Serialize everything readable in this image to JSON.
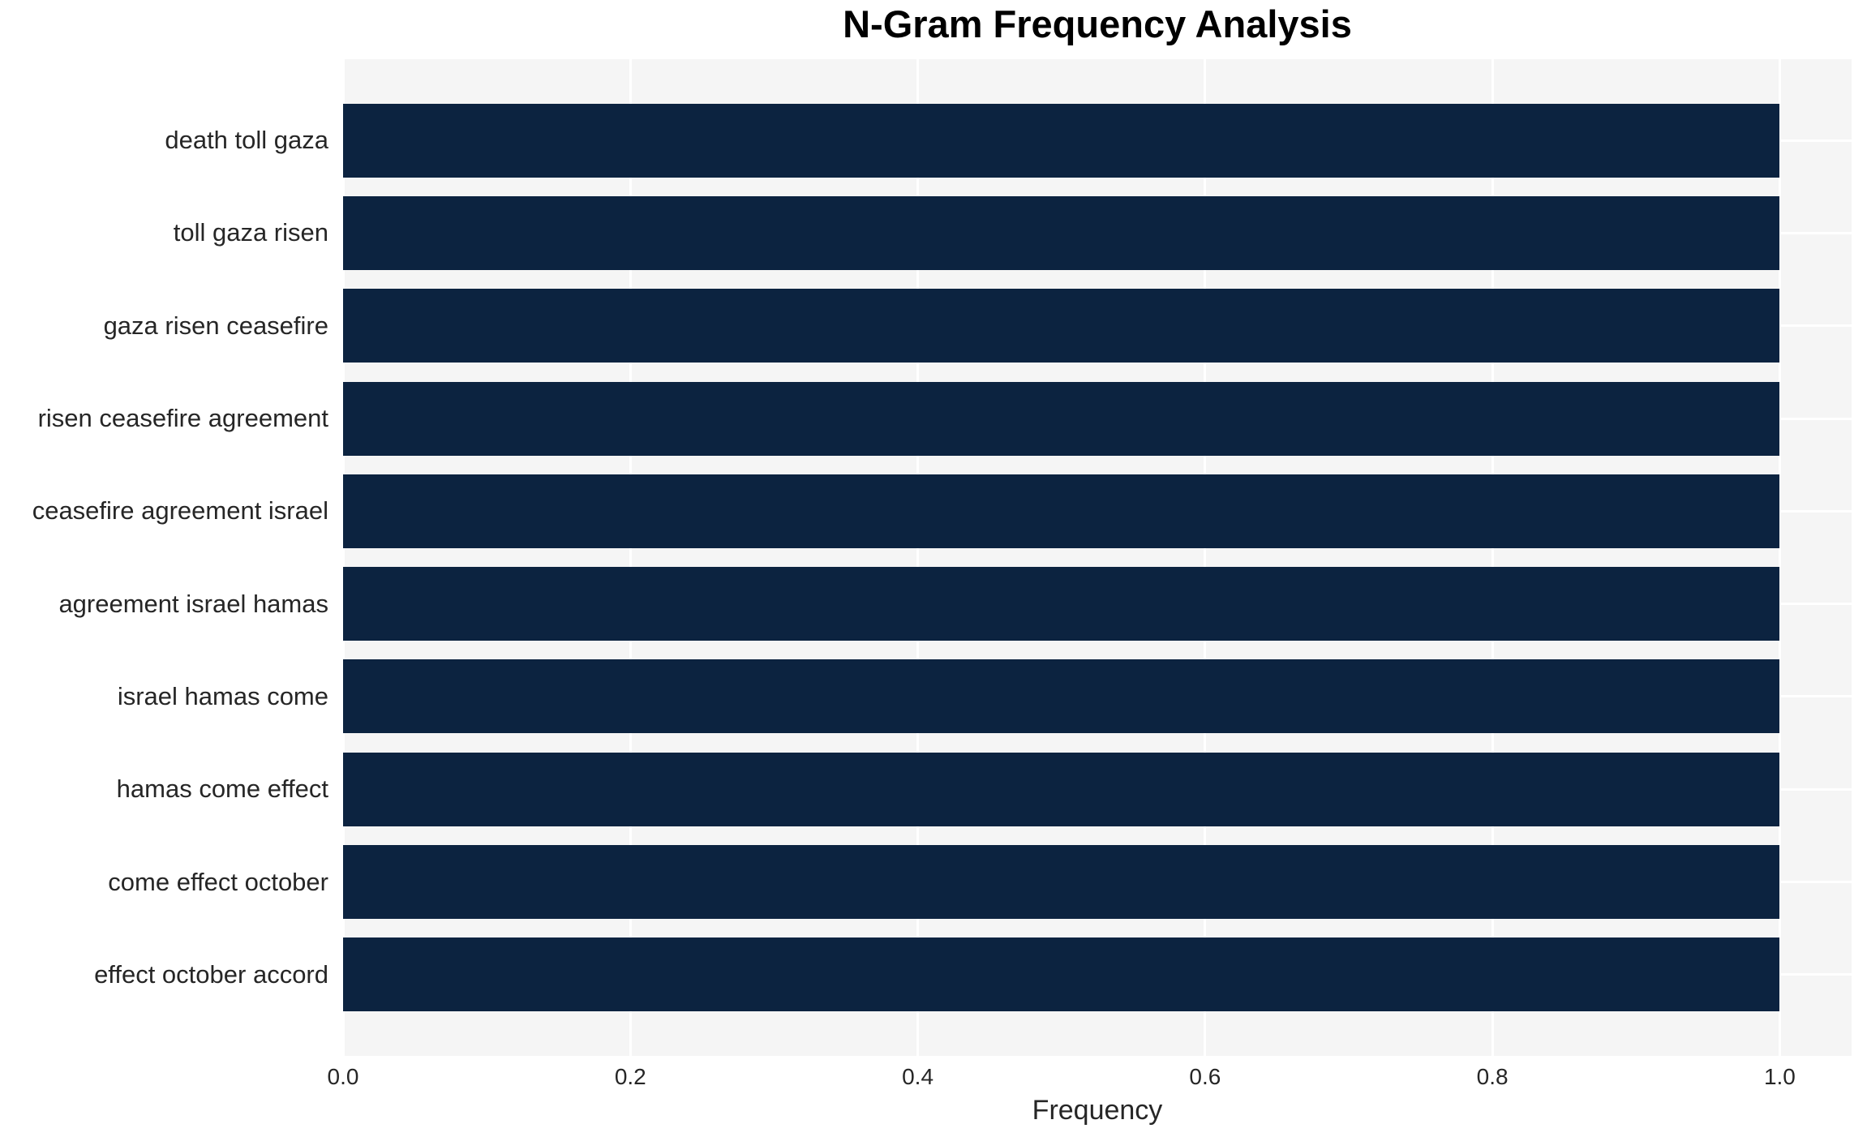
{
  "chart_data": {
    "type": "bar",
    "orientation": "horizontal",
    "title": "N-Gram Frequency Analysis",
    "xlabel": "Frequency",
    "ylabel": "",
    "categories": [
      "death toll gaza",
      "toll gaza risen",
      "gaza risen ceasefire",
      "risen ceasefire agreement",
      "ceasefire agreement israel",
      "agreement israel hamas",
      "israel hamas come",
      "hamas come effect",
      "come effect october",
      "effect october accord"
    ],
    "values": [
      1.0,
      1.0,
      1.0,
      1.0,
      1.0,
      1.0,
      1.0,
      1.0,
      1.0,
      1.0
    ],
    "xticks": [
      0.0,
      0.2,
      0.4,
      0.6,
      0.8,
      1.0
    ],
    "xtick_labels": [
      "0.0",
      "0.2",
      "0.4",
      "0.6",
      "0.8",
      "1.0"
    ],
    "xlim": [
      0,
      1.05
    ],
    "grid": true,
    "legend": "none",
    "colors": {
      "bar": "#0c2340",
      "plot_background": "#f5f5f5",
      "figure_background": "#ffffff",
      "gridline": "#ffffff",
      "title_text": "#000000",
      "axis_text": "#262626"
    }
  }
}
